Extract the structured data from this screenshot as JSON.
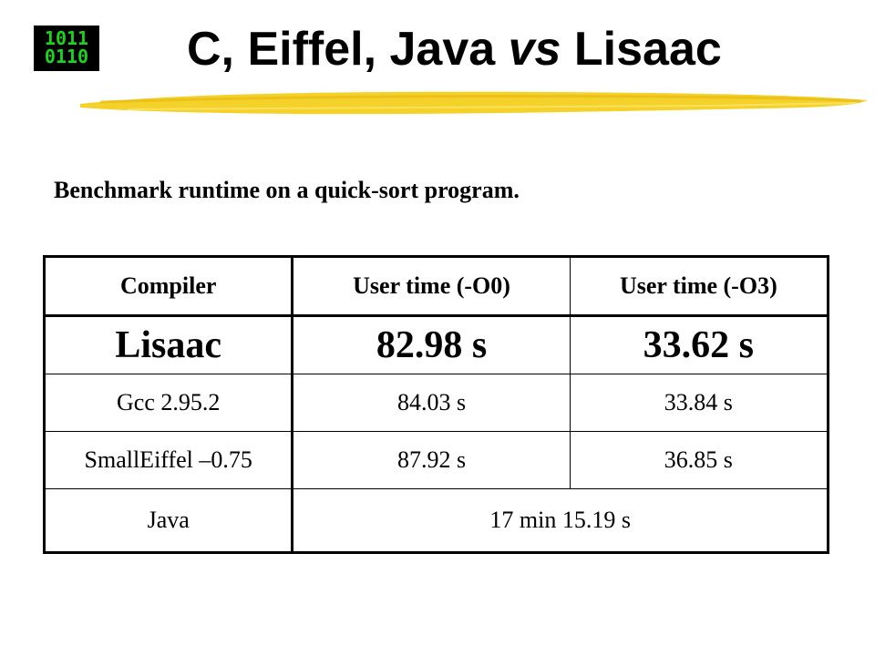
{
  "logo": {
    "line1": "1011",
    "line2": "0110"
  },
  "title": {
    "part1": "C, Eiffel, Java ",
    "vs": "vs",
    "part2": " Lisaac"
  },
  "subtitle": "Benchmark runtime on a quick-sort program.",
  "table": {
    "headers": [
      "Compiler",
      "User time (-O0)",
      "User time (-O3)"
    ],
    "rows": [
      {
        "compiler": "Lisaac",
        "o0": "82.98 s",
        "o3": "33.62 s"
      },
      {
        "compiler": "Gcc 2.95.2",
        "o0": "84.03 s",
        "o3": "33.84 s"
      },
      {
        "compiler": "SmallEiffel –0.75",
        "o0": "87.92 s",
        "o3": "36.85 s"
      }
    ],
    "java": {
      "compiler": "Java",
      "time": "17 min 15.19 s"
    }
  },
  "colors": {
    "brush": "#f5d22a",
    "logo_text": "#1fd21f"
  }
}
